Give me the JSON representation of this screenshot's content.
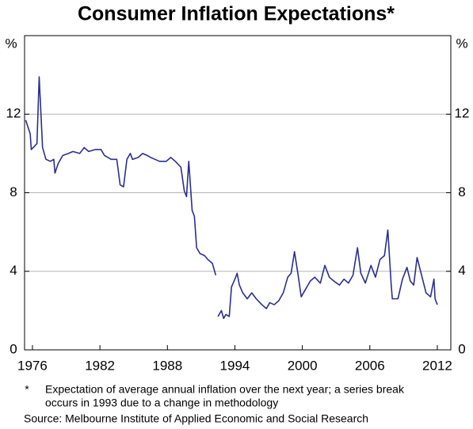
{
  "chart_data": {
    "type": "line",
    "title": "Consumer Inflation Expectations*",
    "y_label": "%",
    "y2_label": "%",
    "x": [
      1975.4,
      1975.8,
      1975.9,
      1976.4,
      1976.6,
      1976.9,
      1977.2,
      1977.6,
      1977.9,
      1978.0,
      1978.3,
      1978.7,
      1979.2,
      1979.6,
      1980.2,
      1980.6,
      1981.0,
      1981.6,
      1982.1,
      1982.4,
      1983.0,
      1983.5,
      1983.8,
      1984.1,
      1984.4,
      1984.7,
      1984.9,
      1985.4,
      1985.8,
      1986.2,
      1986.5,
      1986.9,
      1987.3,
      1987.9,
      1988.3,
      1988.7,
      1989.2,
      1989.5,
      1989.7,
      1989.9,
      1990.2,
      1990.4,
      1990.6,
      1990.9,
      1991.3,
      1991.6,
      1992.0,
      1992.3,
      1992.4,
      1992.5,
      1992.8,
      1993.0,
      1993.2,
      1993.5,
      1993.7,
      1994.0,
      1994.2,
      1994.4,
      1994.7,
      1995.1,
      1995.5,
      1995.9,
      1996.4,
      1996.8,
      1997.1,
      1997.5,
      1997.9,
      1998.3,
      1998.7,
      1999.0,
      1999.3,
      1999.6,
      1999.9,
      2000.3,
      2000.7,
      2001.1,
      2001.6,
      2002.0,
      2002.4,
      2002.8,
      2003.3,
      2003.7,
      2004.1,
      2004.5,
      2004.9,
      2005.2,
      2005.6,
      2006.1,
      2006.5,
      2006.9,
      2007.3,
      2007.6,
      2007.9,
      2008.0,
      2008.5,
      2008.9,
      2009.3,
      2009.6,
      2009.9,
      2010.2,
      2010.6,
      2011.0,
      2011.4,
      2011.7,
      2011.8,
      2012.0
    ],
    "values": [
      11.7,
      11.0,
      10.2,
      10.5,
      13.9,
      10.3,
      9.7,
      9.6,
      9.7,
      9.0,
      9.5,
      9.9,
      10.0,
      10.1,
      10.0,
      10.3,
      10.1,
      10.2,
      10.2,
      9.9,
      9.7,
      9.7,
      8.4,
      8.3,
      9.7,
      10.0,
      9.7,
      9.8,
      10.0,
      9.9,
      9.8,
      9.7,
      9.6,
      9.6,
      9.8,
      9.6,
      9.3,
      8.1,
      7.8,
      9.6,
      7.1,
      6.8,
      5.2,
      4.9,
      4.8,
      4.6,
      4.4,
      3.8,
      null,
      1.7,
      2.0,
      1.6,
      1.8,
      1.7,
      3.2,
      3.6,
      3.9,
      3.3,
      2.9,
      2.6,
      2.9,
      2.6,
      2.3,
      2.1,
      2.4,
      2.3,
      2.5,
      2.9,
      3.7,
      3.9,
      5.0,
      3.9,
      2.7,
      3.1,
      3.5,
      3.7,
      3.4,
      4.3,
      3.7,
      3.5,
      3.3,
      3.6,
      3.4,
      3.8,
      5.2,
      3.9,
      3.4,
      4.3,
      3.7,
      4.6,
      4.8,
      6.1,
      3.3,
      2.6,
      2.6,
      3.6,
      4.2,
      3.5,
      3.3,
      4.7,
      3.8,
      2.9,
      2.7,
      3.6,
      2.6,
      2.3
    ],
    "color": "#2b2f8f",
    "xlim": [
      1975.3,
      2013.2
    ],
    "xticks": [
      1976,
      1982,
      1988,
      1994,
      2000,
      2006,
      2012
    ],
    "ylim": [
      0,
      16
    ],
    "yticks": [
      0,
      4,
      8,
      12
    ],
    "y2lim": [
      0,
      16
    ],
    "y2ticks": [
      0,
      4,
      8,
      12
    ],
    "grid": true,
    "footnote_marker": "*",
    "footnote": [
      "Expectation of average annual inflation over the next year; a series break",
      "occurs in 1993 due to a change in methodology"
    ],
    "source": "Source: Melbourne Institute of Applied Economic and Social Research"
  }
}
